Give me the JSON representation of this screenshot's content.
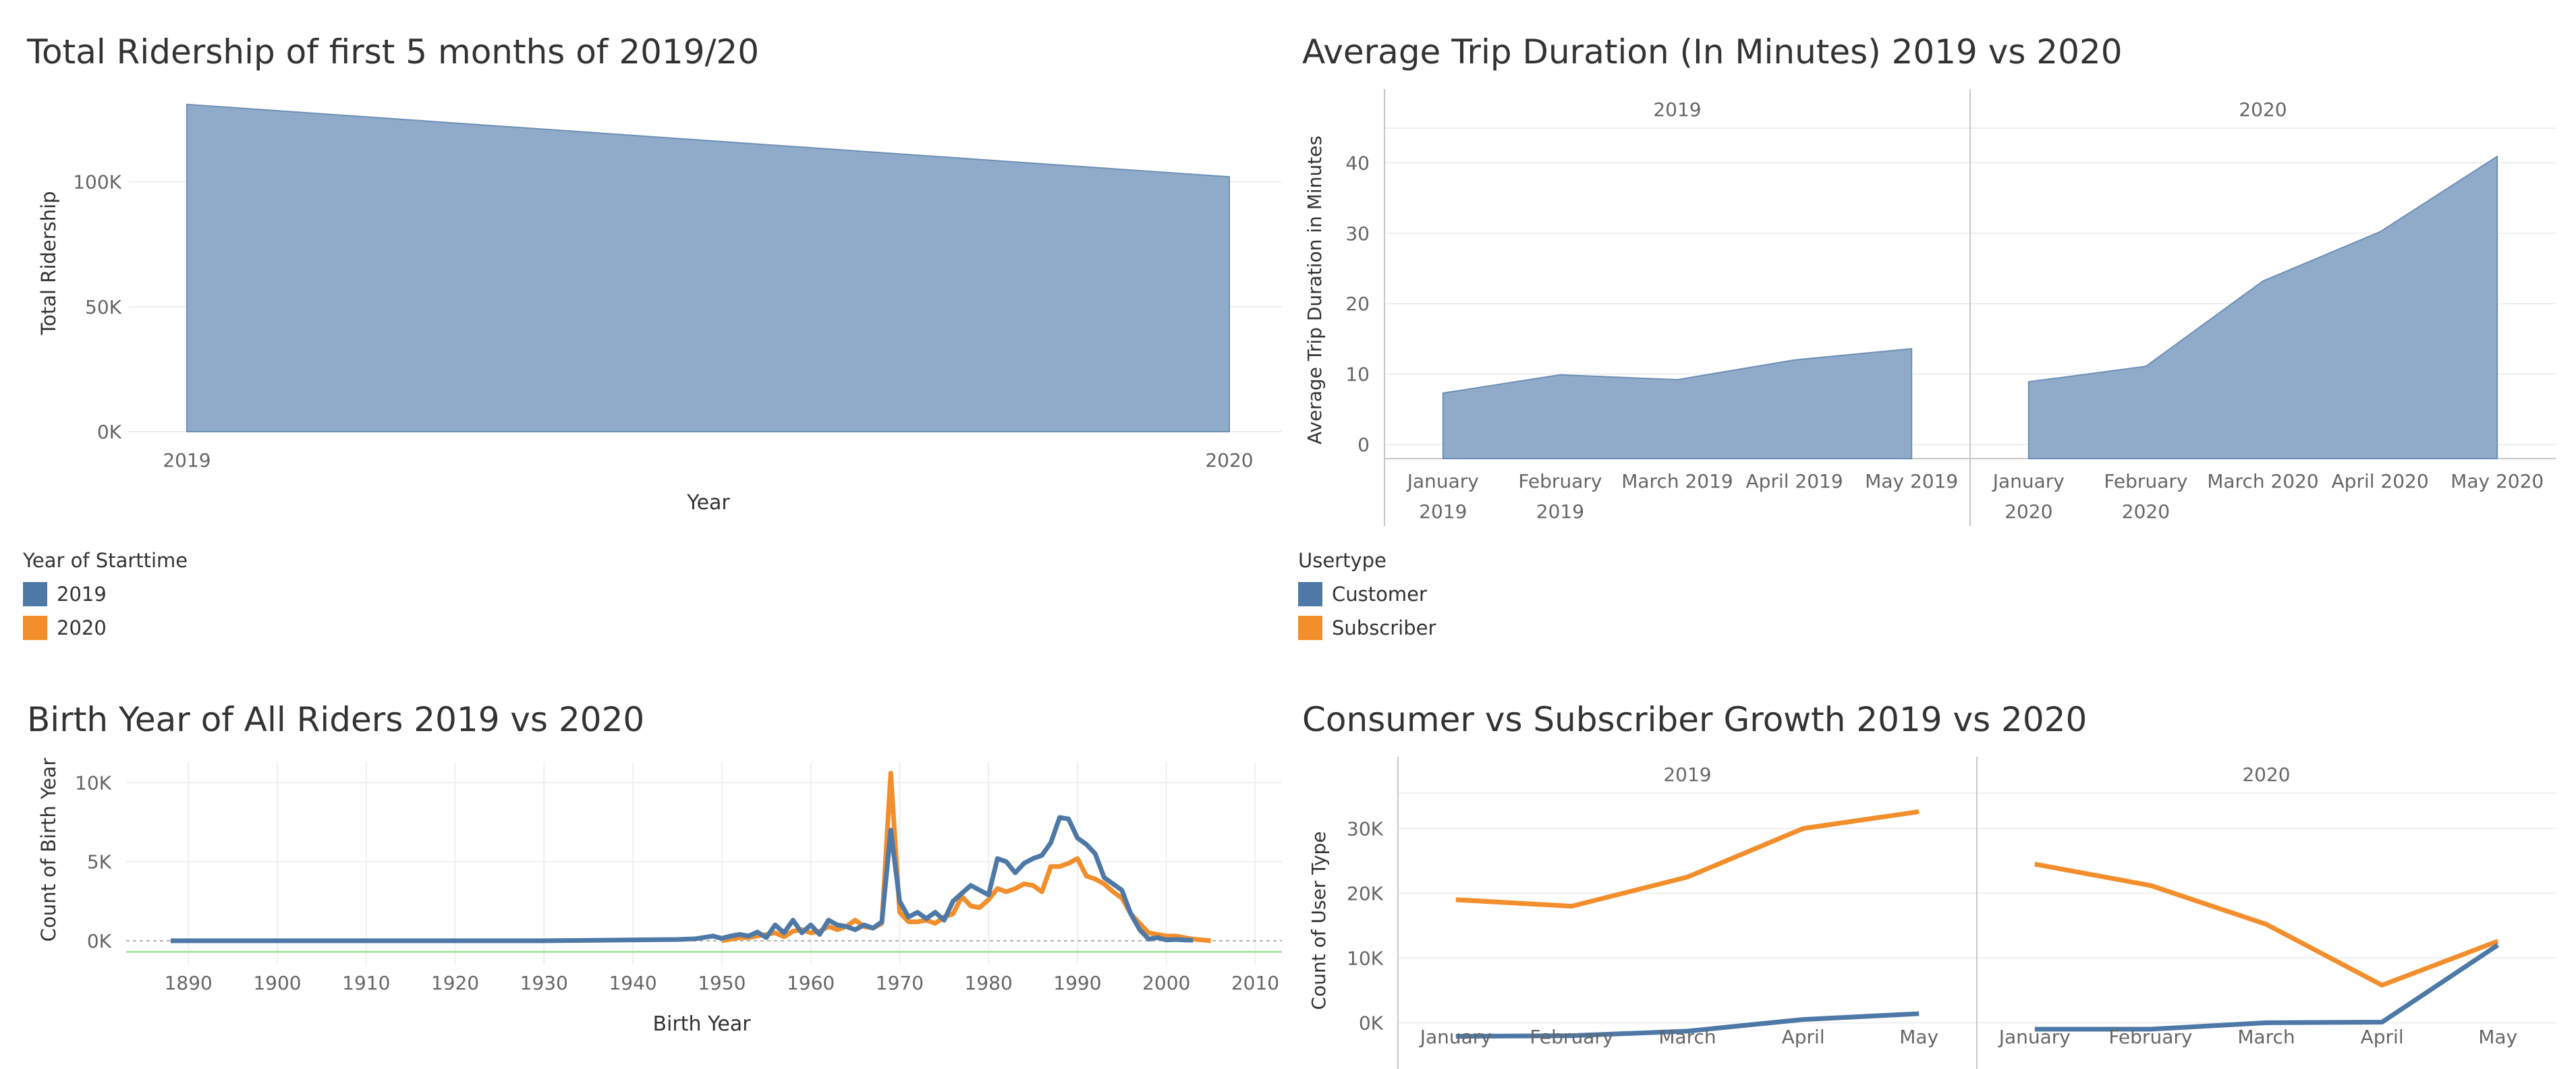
{
  "colors": {
    "area": "#8fabc9",
    "area_stroke": "#6e8fb5",
    "blue": "#4e79a7",
    "orange": "#f28e2b",
    "grid": "#efefef",
    "axis": "#c8c8c8",
    "tick": "#666666",
    "green_ref": "#a6e3a1"
  },
  "legends": {
    "year": {
      "title": "Year of Starttime",
      "items": [
        {
          "label": "2019",
          "color": "#4e79a7"
        },
        {
          "label": "2020",
          "color": "#f28e2b"
        }
      ]
    },
    "usertype": {
      "title": "Usertype",
      "items": [
        {
          "label": "Customer",
          "color": "#4e79a7"
        },
        {
          "label": "Subscriber",
          "color": "#f28e2b"
        }
      ]
    }
  },
  "chart_data": [
    {
      "id": "ridership",
      "type": "area",
      "title": "Total Ridership of first 5 months of 2019/20",
      "xlabel": "Year",
      "ylabel": "Total Ridership",
      "x": [
        "2019",
        "2020"
      ],
      "values": [
        131000,
        102000
      ],
      "ylim": [
        0,
        135000
      ],
      "yticks": [
        {
          "v": 0,
          "label": "0K"
        },
        {
          "v": 50000,
          "label": "50K"
        },
        {
          "v": 100000,
          "label": "100K"
        }
      ],
      "grid": true
    },
    {
      "id": "duration",
      "type": "area",
      "title": "Average Trip Duration (In Minutes) 2019 vs 2020",
      "ylabel": "Average Trip Duration in Minutes",
      "ylim": [
        -2,
        43
      ],
      "yticks": [
        0,
        10,
        20,
        30,
        40
      ],
      "panels": [
        {
          "header": "2019",
          "categories": [
            [
              "January",
              "2019"
            ],
            [
              "February",
              "2019"
            ],
            [
              "March 2019"
            ],
            [
              "April 2019"
            ],
            [
              "May 2019"
            ]
          ],
          "values": [
            7.3,
            9.9,
            9.2,
            12.0,
            13.6
          ]
        },
        {
          "header": "2020",
          "categories": [
            [
              "January",
              "2020"
            ],
            [
              "February",
              "2020"
            ],
            [
              "March 2020"
            ],
            [
              "April 2020"
            ],
            [
              "May 2020"
            ]
          ],
          "values": [
            8.9,
            11.1,
            23.2,
            30.2,
            40.9
          ]
        }
      ],
      "grid": true
    },
    {
      "id": "birthyear",
      "type": "line",
      "title": "Birth Year of All Riders 2019 vs 2020",
      "xlabel": "Birth Year",
      "ylabel": "Count of Birth Year",
      "xlim": [
        1883,
        2013
      ],
      "ylim": [
        -1500,
        11300
      ],
      "xticks": [
        1890,
        1900,
        1910,
        1920,
        1930,
        1940,
        1950,
        1960,
        1970,
        1980,
        1990,
        2000,
        2010
      ],
      "yticks": [
        {
          "v": 0,
          "label": "0K"
        },
        {
          "v": 5000,
          "label": "5K"
        },
        {
          "v": 10000,
          "label": "10K"
        }
      ],
      "reference_lines": [
        0,
        -700
      ],
      "series": [
        {
          "name": "2019",
          "color": "#4e79a7",
          "x": [
            1888,
            1900,
            1910,
            1920,
            1930,
            1940,
            1945,
            1947,
            1949,
            1950,
            1951,
            1952,
            1953,
            1954,
            1955,
            1956,
            1957,
            1958,
            1959,
            1960,
            1961,
            1962,
            1963,
            1964,
            1965,
            1966,
            1967,
            1968,
            1969,
            1970,
            1971,
            1972,
            1973,
            1974,
            1975,
            1976,
            1977,
            1978,
            1979,
            1980,
            1981,
            1982,
            1983,
            1984,
            1985,
            1986,
            1987,
            1988,
            1989,
            1990,
            1991,
            1992,
            1993,
            1994,
            1995,
            1996,
            1997,
            1998,
            1999,
            2000,
            2001,
            2002,
            2003
          ],
          "values": [
            0,
            0,
            0,
            0,
            0,
            50,
            80,
            120,
            300,
            150,
            300,
            400,
            300,
            550,
            200,
            1000,
            500,
            1300,
            500,
            1000,
            400,
            1300,
            1000,
            900,
            700,
            1000,
            800,
            1200,
            7000,
            2500,
            1500,
            1800,
            1400,
            1800,
            1300,
            2500,
            3000,
            3500,
            3200,
            2900,
            5200,
            5000,
            4300,
            4900,
            5200,
            5400,
            6200,
            7800,
            7700,
            6500,
            6100,
            5500,
            4000,
            3600,
            3200,
            1700,
            700,
            100,
            200,
            50,
            80,
            50,
            30
          ]
        },
        {
          "name": "2020",
          "color": "#f28e2b",
          "x": [
            1950,
            1951,
            1952,
            1953,
            1954,
            1955,
            1956,
            1957,
            1958,
            1959,
            1960,
            1961,
            1962,
            1963,
            1964,
            1965,
            1966,
            1967,
            1968,
            1969,
            1970,
            1971,
            1972,
            1973,
            1974,
            1975,
            1976,
            1977,
            1978,
            1979,
            1980,
            1981,
            1982,
            1983,
            1984,
            1985,
            1986,
            1987,
            1988,
            1989,
            1990,
            1991,
            1992,
            1993,
            1994,
            1995,
            1996,
            1997,
            1998,
            1999,
            2000,
            2001,
            2002,
            2003,
            2004,
            2005
          ],
          "values": [
            0,
            100,
            200,
            200,
            300,
            400,
            500,
            250,
            600,
            700,
            500,
            600,
            900,
            700,
            900,
            1300,
            900,
            800,
            1100,
            10600,
            1800,
            1200,
            1200,
            1300,
            1100,
            1500,
            1700,
            2800,
            2200,
            2100,
            2600,
            3300,
            3100,
            3300,
            3600,
            3500,
            3100,
            4700,
            4700,
            4900,
            5200,
            4100,
            3900,
            3600,
            3100,
            2700,
            1700,
            1100,
            500,
            400,
            300,
            300,
            200,
            100,
            50,
            0
          ]
        }
      ],
      "grid": true
    },
    {
      "id": "growth",
      "type": "line",
      "title": "Consumer vs Subscriber Growth 2019 vs 2020",
      "ylabel": "Count of User Type",
      "ylim": [
        -3500,
        34000
      ],
      "yticks": [
        {
          "v": 0,
          "label": "0K"
        },
        {
          "v": 10000,
          "label": "10K"
        },
        {
          "v": 20000,
          "label": "20K"
        },
        {
          "v": 30000,
          "label": "30K"
        }
      ],
      "panels": [
        {
          "header": "2019",
          "categories": [
            "January",
            "February",
            "March",
            "April",
            "May"
          ],
          "series": [
            {
              "name": "Subscriber",
              "color": "#f28e2b",
              "values": [
                19000,
                18000,
                22500,
                30000,
                32600
              ]
            },
            {
              "name": "Customer",
              "color": "#4e79a7",
              "values": [
                -2100,
                -2000,
                -1300,
                500,
                1400
              ]
            }
          ]
        },
        {
          "header": "2020",
          "categories": [
            "January",
            "February",
            "March",
            "April",
            "May"
          ],
          "series": [
            {
              "name": "Subscriber",
              "color": "#f28e2b",
              "values": [
                24500,
                21200,
                15200,
                5800,
                12600
              ]
            },
            {
              "name": "Customer",
              "color": "#4e79a7",
              "values": [
                -1000,
                -1000,
                0,
                100,
                12000
              ]
            }
          ]
        }
      ],
      "grid": true
    }
  ]
}
